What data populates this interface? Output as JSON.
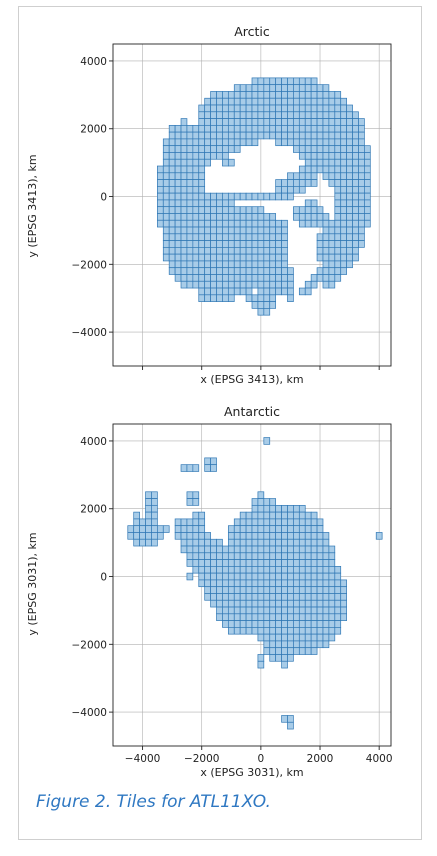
{
  "caption": "Figure 2. Tiles for ATL11XO.",
  "colors": {
    "tile_fill": "#a8cce8",
    "tile_edge": "#2f77b4",
    "grid": "#b0b0b0",
    "caption": "#2f78c2"
  },
  "chart_data": [
    {
      "type": "scatter",
      "marker": "square-tile",
      "tile_size_km": 200,
      "title": "Arctic",
      "xlabel": "x (EPSG 3413), km",
      "ylabel": "y (EPSG 3413), km",
      "xlim": [
        -5000,
        4400
      ],
      "ylim": [
        -5000,
        4500
      ],
      "xticks": [],
      "yticks": [
        4000,
        2000,
        0,
        -2000,
        -4000
      ],
      "yticklabels": [
        "4000",
        "2000",
        "0",
        "−2000",
        "−4000"
      ],
      "grid": true,
      "rows": [
        {
          "y": 3400,
          "runs": [
            [
              -200,
              1900
            ]
          ]
        },
        {
          "y": 3200,
          "runs": [
            [
              -800,
              2200
            ]
          ]
        },
        {
          "y": 3000,
          "runs": [
            [
              -1600,
              2600
            ]
          ]
        },
        {
          "y": 2800,
          "runs": [
            [
              -1800,
              2800
            ]
          ]
        },
        {
          "y": 2600,
          "runs": [
            [
              -2000,
              3000
            ]
          ]
        },
        {
          "y": 2400,
          "runs": [
            [
              -2000,
              3200
            ]
          ]
        },
        {
          "y": 2200,
          "runs": [
            [
              -2600,
              -2600
            ],
            [
              -2000,
              3400
            ]
          ]
        },
        {
          "y": 2000,
          "runs": [
            [
              -3000,
              3400
            ]
          ]
        },
        {
          "y": 1800,
          "runs": [
            [
              -3000,
              3400
            ]
          ]
        },
        {
          "y": 1600,
          "runs": [
            [
              -3200,
              -200
            ],
            [
              600,
              3400
            ]
          ]
        },
        {
          "y": 1400,
          "runs": [
            [
              -3200,
              -800
            ],
            [
              1200,
              3600
            ]
          ]
        },
        {
          "y": 1200,
          "runs": [
            [
              -3200,
              -1200
            ],
            [
              1400,
              3600
            ]
          ]
        },
        {
          "y": 1000,
          "runs": [
            [
              -3200,
              -1800
            ],
            [
              -1200,
              -1000
            ],
            [
              1600,
              3600
            ]
          ]
        },
        {
          "y": 800,
          "runs": [
            [
              -3400,
              -2000
            ],
            [
              1400,
              3600
            ]
          ]
        },
        {
          "y": 600,
          "runs": [
            [
              -3400,
              -2000
            ],
            [
              1000,
              1800
            ],
            [
              2200,
              3600
            ]
          ]
        },
        {
          "y": 400,
          "runs": [
            [
              -3400,
              -2000
            ],
            [
              600,
              1800
            ],
            [
              2400,
              3600
            ]
          ]
        },
        {
          "y": 200,
          "runs": [
            [
              -3400,
              -2000
            ],
            [
              600,
              1400
            ],
            [
              2600,
              3600
            ]
          ]
        },
        {
          "y": 0,
          "runs": [
            [
              -3400,
              -2000
            ],
            [
              -1800,
              1000
            ],
            [
              2600,
              3600
            ]
          ]
        },
        {
          "y": -200,
          "runs": [
            [
              -3400,
              -1000
            ],
            [
              1600,
              1800
            ],
            [
              2600,
              3600
            ]
          ]
        },
        {
          "y": -400,
          "runs": [
            [
              -3400,
              0
            ],
            [
              1200,
              2000
            ],
            [
              2600,
              3600
            ]
          ]
        },
        {
          "y": -600,
          "runs": [
            [
              -3400,
              400
            ],
            [
              1200,
              2200
            ],
            [
              2600,
              3600
            ]
          ]
        },
        {
          "y": -800,
          "runs": [
            [
              -3400,
              800
            ],
            [
              1400,
              2200
            ],
            [
              2400,
              3600
            ]
          ]
        },
        {
          "y": -1000,
          "runs": [
            [
              -3200,
              800
            ],
            [
              2200,
              3400
            ]
          ]
        },
        {
          "y": -1200,
          "runs": [
            [
              -3200,
              800
            ],
            [
              2000,
              3400
            ]
          ]
        },
        {
          "y": -1400,
          "runs": [
            [
              -3200,
              800
            ],
            [
              2000,
              3400
            ]
          ]
        },
        {
          "y": -1600,
          "runs": [
            [
              -3200,
              800
            ],
            [
              2000,
              3200
            ]
          ]
        },
        {
          "y": -1800,
          "runs": [
            [
              -3200,
              800
            ],
            [
              2000,
              3200
            ]
          ]
        },
        {
          "y": -2000,
          "runs": [
            [
              -3000,
              800
            ],
            [
              2200,
              3000
            ]
          ]
        },
        {
          "y": -2200,
          "runs": [
            [
              -3000,
              1000
            ],
            [
              2000,
              2800
            ]
          ]
        },
        {
          "y": -2400,
          "runs": [
            [
              -2800,
              1000
            ],
            [
              1800,
              2600
            ]
          ]
        },
        {
          "y": -2600,
          "runs": [
            [
              -2600,
              1000
            ],
            [
              1600,
              1800
            ],
            [
              2200,
              2400
            ]
          ]
        },
        {
          "y": -2800,
          "runs": [
            [
              -2000,
              -400
            ],
            [
              0,
              1000
            ],
            [
              1400,
              1600
            ]
          ]
        },
        {
          "y": -3000,
          "runs": [
            [
              -2000,
              -1000
            ],
            [
              -400,
              400
            ],
            [
              1000,
              1000
            ]
          ]
        },
        {
          "y": -3200,
          "runs": [
            [
              -200,
              400
            ]
          ]
        },
        {
          "y": -3400,
          "runs": [
            [
              0,
              200
            ]
          ]
        }
      ]
    },
    {
      "type": "scatter",
      "marker": "square-tile",
      "tile_size_km": 200,
      "title": "Antarctic",
      "xlabel": "x (EPSG 3031), km",
      "ylabel": "y (EPSG 3031), km",
      "xlim": [
        -5000,
        4400
      ],
      "ylim": [
        -5000,
        4500
      ],
      "xticks": [
        -4000,
        -2000,
        0,
        2000,
        4000
      ],
      "xticklabels": [
        "−4000",
        "−2000",
        "0",
        "2000",
        "4000"
      ],
      "yticks": [
        4000,
        2000,
        0,
        -2000,
        -4000
      ],
      "yticklabels": [
        "4000",
        "2000",
        "0",
        "−2000",
        "−4000"
      ],
      "grid": true,
      "rows": [
        {
          "y": 4000,
          "runs": [
            [
              200,
              200
            ]
          ]
        },
        {
          "y": 3400,
          "runs": [
            [
              -1800,
              -1600
            ]
          ]
        },
        {
          "y": 3200,
          "runs": [
            [
              -2600,
              -2200
            ],
            [
              -1800,
              -1600
            ]
          ]
        },
        {
          "y": 2400,
          "runs": [
            [
              -3800,
              -3600
            ],
            [
              -2400,
              -2200
            ],
            [
              0,
              0
            ]
          ]
        },
        {
          "y": 2200,
          "runs": [
            [
              -3800,
              -3600
            ],
            [
              -2400,
              -2200
            ],
            [
              -200,
              400
            ]
          ]
        },
        {
          "y": 2000,
          "runs": [
            [
              -3800,
              -3600
            ],
            [
              -200,
              1400
            ]
          ]
        },
        {
          "y": 1800,
          "runs": [
            [
              -4200,
              -4200
            ],
            [
              -3800,
              -3600
            ],
            [
              -2200,
              -2000
            ],
            [
              -600,
              1800
            ]
          ]
        },
        {
          "y": 1600,
          "runs": [
            [
              -4200,
              -4000
            ],
            [
              -3800,
              -3600
            ],
            [
              -2800,
              -2000
            ],
            [
              -800,
              2000
            ]
          ]
        },
        {
          "y": 1400,
          "runs": [
            [
              -4400,
              -3200
            ],
            [
              -2800,
              -2000
            ],
            [
              -1000,
              2000
            ]
          ]
        },
        {
          "y": 1200,
          "runs": [
            [
              -4400,
              -3400
            ],
            [
              -2800,
              -1800
            ],
            [
              -1000,
              2200
            ],
            [
              4000,
              4000
            ]
          ]
        },
        {
          "y": 1000,
          "runs": [
            [
              -4200,
              -3600
            ],
            [
              -2600,
              -1400
            ],
            [
              -1000,
              2200
            ]
          ]
        },
        {
          "y": 800,
          "runs": [
            [
              -2600,
              2400
            ]
          ]
        },
        {
          "y": 600,
          "runs": [
            [
              -2400,
              2400
            ]
          ]
        },
        {
          "y": 400,
          "runs": [
            [
              -2400,
              2400
            ]
          ]
        },
        {
          "y": 200,
          "runs": [
            [
              -2200,
              2600
            ]
          ]
        },
        {
          "y": 0,
          "runs": [
            [
              -2400,
              -2400
            ],
            [
              -2000,
              2600
            ]
          ]
        },
        {
          "y": -200,
          "runs": [
            [
              -2000,
              2800
            ]
          ]
        },
        {
          "y": -400,
          "runs": [
            [
              -1800,
              2800
            ]
          ]
        },
        {
          "y": -600,
          "runs": [
            [
              -1800,
              2800
            ]
          ]
        },
        {
          "y": -800,
          "runs": [
            [
              -1600,
              2800
            ]
          ]
        },
        {
          "y": -1000,
          "runs": [
            [
              -1400,
              2800
            ]
          ]
        },
        {
          "y": -1200,
          "runs": [
            [
              -1400,
              2800
            ]
          ]
        },
        {
          "y": -1400,
          "runs": [
            [
              -1200,
              2600
            ]
          ]
        },
        {
          "y": -1600,
          "runs": [
            [
              -1000,
              2600
            ]
          ]
        },
        {
          "y": -1800,
          "runs": [
            [
              0,
              2400
            ]
          ]
        },
        {
          "y": -2000,
          "runs": [
            [
              200,
              2200
            ]
          ]
        },
        {
          "y": -2200,
          "runs": [
            [
              200,
              1800
            ]
          ]
        },
        {
          "y": -2400,
          "runs": [
            [
              0,
              0
            ],
            [
              400,
              1000
            ]
          ]
        },
        {
          "y": -2600,
          "runs": [
            [
              0,
              0
            ],
            [
              800,
              800
            ]
          ]
        },
        {
          "y": -4200,
          "runs": [
            [
              800,
              1000
            ]
          ]
        },
        {
          "y": -4400,
          "runs": [
            [
              1000,
              1000
            ]
          ]
        }
      ]
    }
  ]
}
